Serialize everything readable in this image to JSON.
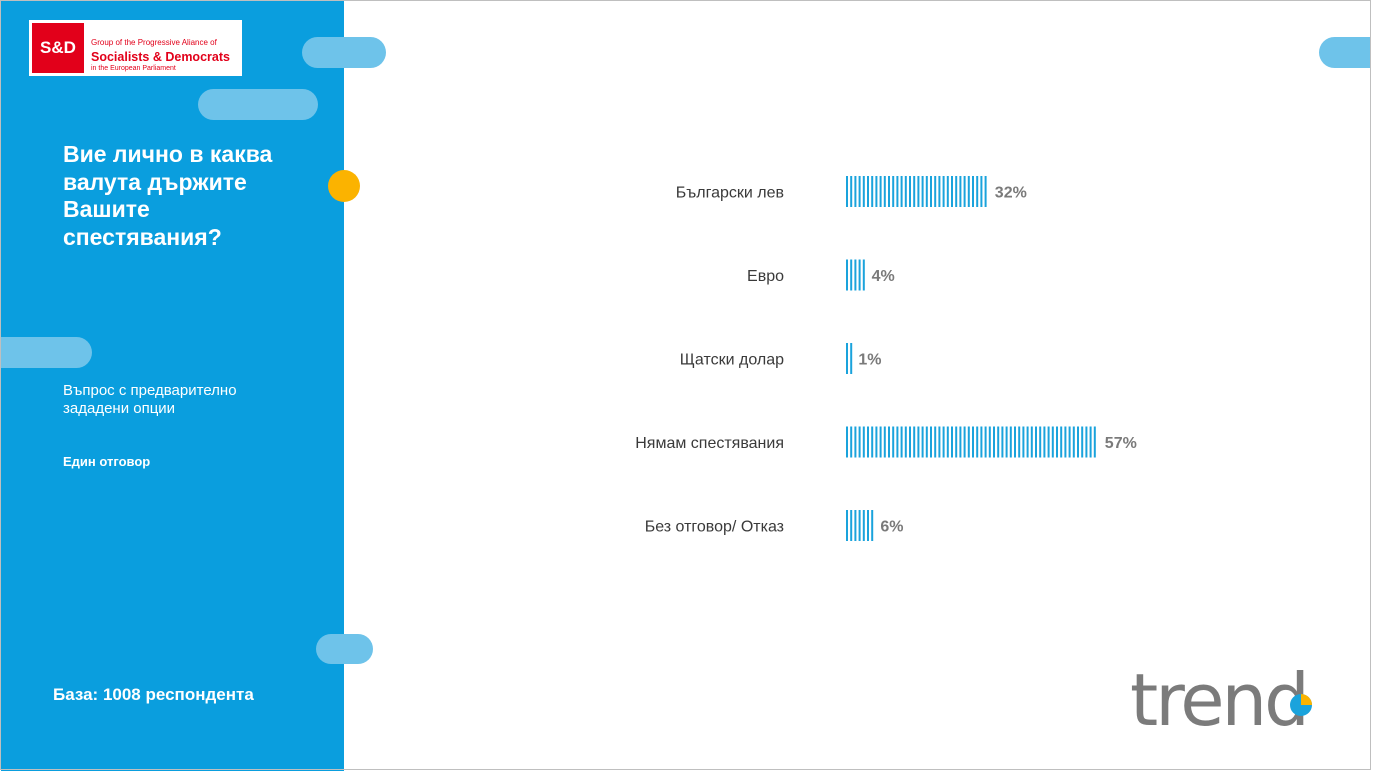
{
  "logo": {
    "mark": "S&D",
    "line1": "Group of the Progressive Aliance of",
    "line2": "Socialists & Democrats",
    "line3": "in the European Parliament"
  },
  "question": "Вие лично в каква\nвалута държите\nВашите\nспестявания?",
  "question_type": "Въпрос с предварително\nзададени опции",
  "answer_type": "Един отговор",
  "base": "База: 1008 респондента",
  "brand": "trend",
  "colors": {
    "panel": "#0a9ede",
    "pill": "#6ec3ea",
    "accent_dot": "#fbb300",
    "bar": "#1aa3dc",
    "brand_grey": "#7b7b7b"
  },
  "chart_data": {
    "type": "bar",
    "orientation": "horizontal",
    "categories": [
      "Български лев",
      "Евро",
      "Щатски долар",
      "Нямам спестявания",
      "Без отговор/ Отказ"
    ],
    "values": [
      32,
      4,
      1,
      57,
      6
    ],
    "value_labels": [
      "32%",
      "4%",
      "1%",
      "57%",
      "6%"
    ],
    "unit": "%",
    "xlim": [
      0,
      100
    ],
    "grid": false,
    "legend": "none",
    "bar_style": "vertical-stripes"
  }
}
